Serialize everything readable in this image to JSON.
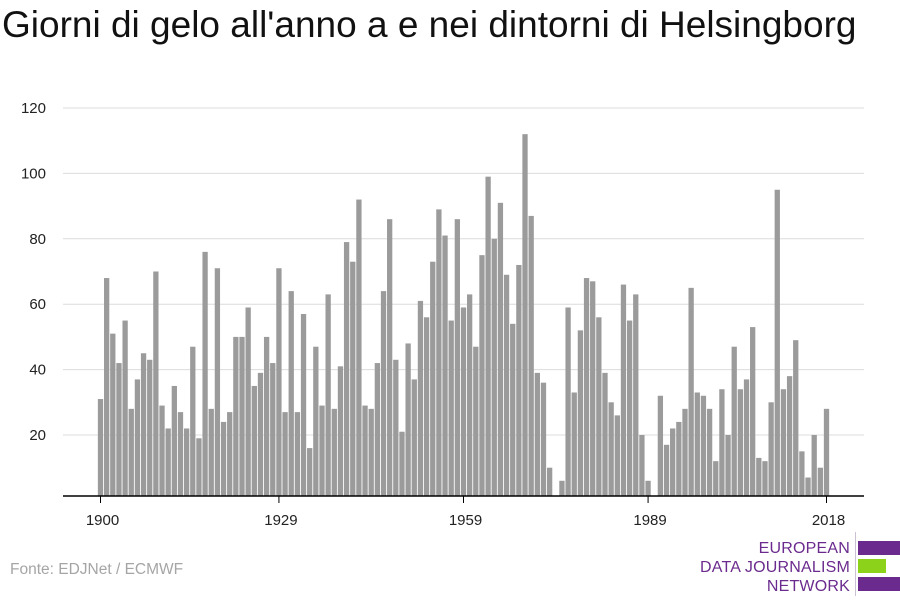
{
  "title": "Giorni di gelo all'anno a e nei dintorni di Helsingborg",
  "source": "Fonte: EDJNet / ECMWF",
  "logo": {
    "lines": [
      "EUROPEAN",
      "DATA JOURNALISM",
      "NETWORK"
    ],
    "colors": [
      "#6b2b8e",
      "#8cd21a",
      "#6b2b8e"
    ]
  },
  "colors": {
    "bar": "#9b9b9b",
    "grid": "#dcdcdc",
    "axis": "#000000"
  },
  "chart_data": {
    "type": "bar",
    "title": "Giorni di gelo all'anno a e nei dintorni di Helsingborg",
    "xlabel": "",
    "ylabel": "",
    "x": [
      1900,
      1901,
      1902,
      1903,
      1904,
      1905,
      1906,
      1907,
      1908,
      1909,
      1910,
      1911,
      1912,
      1913,
      1914,
      1915,
      1916,
      1917,
      1918,
      1919,
      1920,
      1921,
      1922,
      1923,
      1924,
      1925,
      1926,
      1927,
      1928,
      1929,
      1930,
      1931,
      1932,
      1933,
      1934,
      1935,
      1936,
      1937,
      1938,
      1939,
      1940,
      1941,
      1942,
      1943,
      1944,
      1945,
      1946,
      1947,
      1948,
      1949,
      1950,
      1951,
      1952,
      1953,
      1954,
      1955,
      1956,
      1957,
      1958,
      1959,
      1960,
      1961,
      1962,
      1963,
      1964,
      1965,
      1966,
      1967,
      1968,
      1969,
      1970,
      1971,
      1972,
      1973,
      1974,
      1975,
      1976,
      1977,
      1978,
      1979,
      1980,
      1981,
      1982,
      1983,
      1984,
      1985,
      1986,
      1987,
      1988,
      1989,
      1990,
      1991,
      1992,
      1993,
      1994,
      1995,
      1996,
      1997,
      1998,
      1999,
      2000,
      2001,
      2002,
      2003,
      2004,
      2005,
      2006,
      2007,
      2008,
      2009,
      2010,
      2011,
      2012,
      2013,
      2014,
      2015,
      2016,
      2017,
      2018
    ],
    "values": [
      31,
      68,
      51,
      42,
      55,
      28,
      37,
      45,
      43,
      70,
      29,
      22,
      35,
      27,
      22,
      47,
      19,
      76,
      28,
      71,
      24,
      27,
      50,
      50,
      59,
      35,
      39,
      50,
      42,
      71,
      27,
      64,
      27,
      57,
      16,
      47,
      29,
      63,
      28,
      41,
      79,
      73,
      92,
      29,
      28,
      42,
      64,
      86,
      43,
      21,
      48,
      37,
      61,
      56,
      73,
      89,
      81,
      55,
      86,
      59,
      63,
      47,
      75,
      99,
      80,
      91,
      69,
      54,
      72,
      112,
      87,
      39,
      36,
      10,
      1,
      6,
      59,
      33,
      52,
      68,
      67,
      56,
      39,
      30,
      26,
      66,
      55,
      63,
      20,
      6,
      1,
      32,
      17,
      22,
      24,
      28,
      65,
      33,
      32,
      28,
      12,
      34,
      20,
      47,
      34,
      37,
      53,
      13,
      12,
      30,
      95,
      34,
      38,
      49,
      15,
      7,
      20,
      10,
      28
    ],
    "ylim": [
      1,
      120
    ],
    "yticks": [
      20,
      40,
      60,
      80,
      100,
      120
    ],
    "xticks": [
      1900,
      1929,
      1959,
      1989,
      2018
    ],
    "grid": true
  }
}
